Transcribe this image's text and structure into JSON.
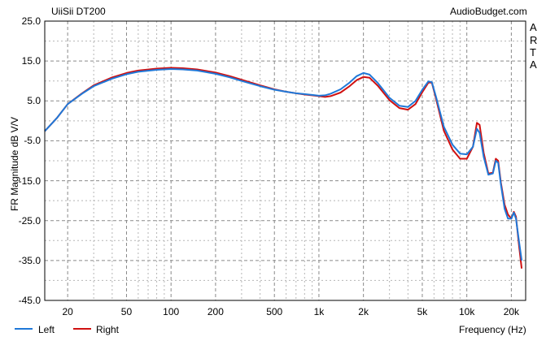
{
  "chart_data": {
    "type": "line",
    "title": "UiiSii DT200",
    "watermark": "AudioBudget.com",
    "side_label": [
      "A",
      "R",
      "T",
      "A"
    ],
    "xlabel": "Frequency (Hz)",
    "ylabel": "FR Magnitude dB V/V",
    "xscale": "log",
    "xlim": [
      14,
      25000
    ],
    "ylim": [
      -45,
      25
    ],
    "yticks": [
      "25.0",
      "15.0",
      "5.0",
      "-5.0",
      "-15.0",
      "-25.0",
      "-35.0",
      "-45.0"
    ],
    "xticks": [
      {
        "v": 20,
        "label": "20"
      },
      {
        "v": 50,
        "label": "50"
      },
      {
        "v": 100,
        "label": "100"
      },
      {
        "v": 200,
        "label": "200"
      },
      {
        "v": 500,
        "label": "500"
      },
      {
        "v": 1000,
        "label": "1k"
      },
      {
        "v": 2000,
        "label": "2k"
      },
      {
        "v": 5000,
        "label": "5k"
      },
      {
        "v": 10000,
        "label": "10k"
      },
      {
        "v": 20000,
        "label": "20k"
      }
    ],
    "grid": true,
    "legend": "bottom-left",
    "series": [
      {
        "name": "Left",
        "color": "#1f78d8",
        "x": [
          14,
          17,
          20,
          25,
          30,
          40,
          50,
          60,
          80,
          100,
          120,
          150,
          200,
          250,
          300,
          400,
          500,
          600,
          700,
          800,
          900,
          1000,
          1100,
          1200,
          1400,
          1600,
          1800,
          2000,
          2200,
          2500,
          3000,
          3500,
          4000,
          4500,
          5000,
          5500,
          5800,
          6200,
          7000,
          8000,
          9000,
          10000,
          11000,
          11700,
          12200,
          13000,
          14000,
          15000,
          15700,
          16300,
          17000,
          18000,
          19000,
          20000,
          20800,
          21500,
          22500,
          23500
        ],
        "y": [
          -2.6,
          0.8,
          4.2,
          6.8,
          8.7,
          10.6,
          11.7,
          12.3,
          12.8,
          13.0,
          12.9,
          12.6,
          11.8,
          10.9,
          10.0,
          8.7,
          7.8,
          7.3,
          6.9,
          6.7,
          6.5,
          6.3,
          6.4,
          6.8,
          7.9,
          9.5,
          11.2,
          12.0,
          11.6,
          9.5,
          5.8,
          3.8,
          3.5,
          5.0,
          7.8,
          9.9,
          9.7,
          6.0,
          -1.5,
          -6.0,
          -8.2,
          -8.4,
          -6.5,
          -2.0,
          -3.0,
          -9.0,
          -13.5,
          -13.2,
          -10.0,
          -10.5,
          -16.0,
          -22.0,
          -24.5,
          -24.5,
          -23.0,
          -24.5,
          -30.0,
          -35.0
        ]
      },
      {
        "name": "Right",
        "color": "#d01010",
        "x": [
          14,
          17,
          20,
          25,
          30,
          40,
          50,
          60,
          80,
          100,
          120,
          150,
          200,
          250,
          300,
          400,
          500,
          600,
          700,
          800,
          900,
          1000,
          1100,
          1200,
          1400,
          1600,
          1800,
          2000,
          2200,
          2500,
          3000,
          3500,
          4000,
          4500,
          5000,
          5500,
          5800,
          6200,
          7000,
          8000,
          9000,
          10000,
          11000,
          11700,
          12200,
          13000,
          14000,
          15000,
          15700,
          16300,
          17000,
          18000,
          19000,
          20000,
          20800,
          21500,
          22500,
          23500
        ],
        "y": [
          -2.6,
          0.8,
          4.2,
          6.9,
          8.9,
          10.9,
          12.0,
          12.6,
          13.1,
          13.3,
          13.2,
          12.9,
          12.1,
          11.2,
          10.3,
          8.9,
          7.9,
          7.3,
          6.9,
          6.6,
          6.4,
          6.2,
          6.0,
          6.2,
          7.1,
          8.6,
          10.2,
          11.0,
          10.8,
          8.8,
          5.2,
          3.2,
          2.8,
          4.2,
          7.2,
          9.6,
          9.6,
          5.5,
          -2.5,
          -7.2,
          -9.5,
          -9.5,
          -6.5,
          -0.5,
          -1.0,
          -8.0,
          -13.2,
          -13.0,
          -9.5,
          -10.0,
          -15.5,
          -21.0,
          -23.5,
          -24.5,
          -22.8,
          -24.0,
          -31.0,
          -37.0
        ]
      }
    ]
  }
}
